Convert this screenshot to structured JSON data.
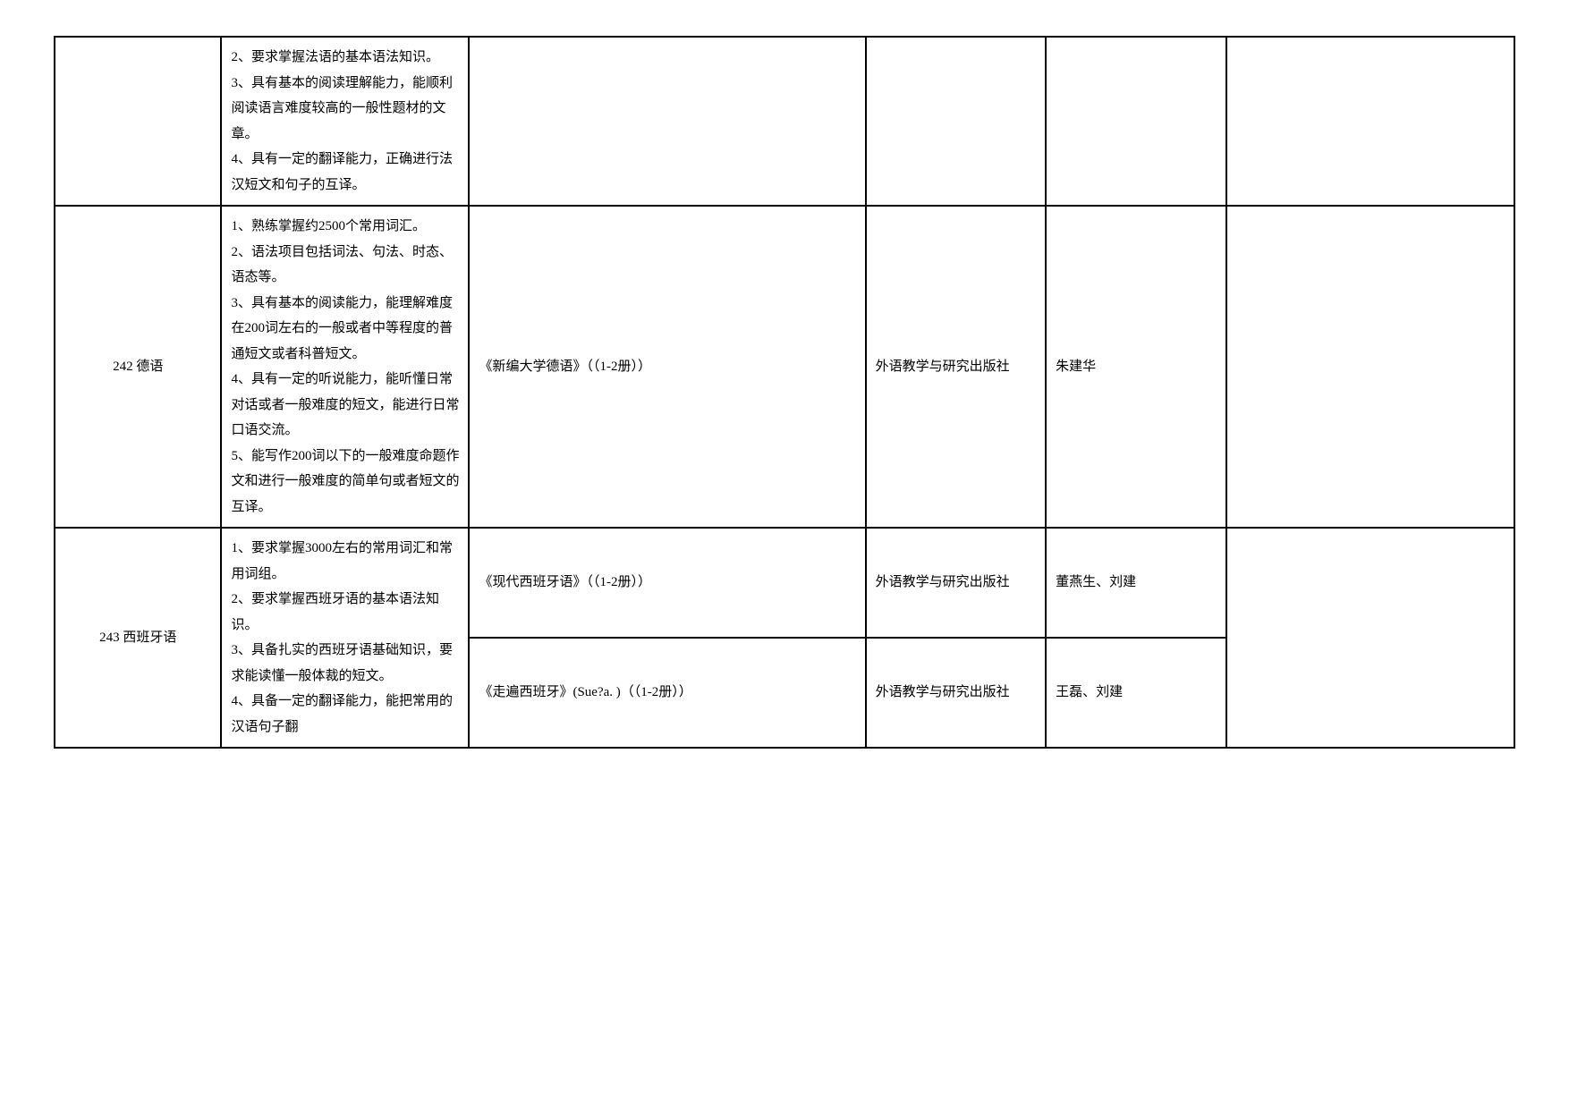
{
  "table": {
    "columns": [
      {
        "class": "col1",
        "width": "11%",
        "align": "center"
      },
      {
        "class": "col2",
        "width": "17%",
        "align": "left"
      },
      {
        "class": "col3",
        "width": "28%",
        "align": "left"
      },
      {
        "class": "col4",
        "width": "12%",
        "align": "left"
      },
      {
        "class": "col5",
        "width": "12%",
        "align": "left"
      },
      {
        "class": "col6",
        "width": "20%",
        "align": "left"
      }
    ],
    "border_color": "#000000",
    "border_width": 2,
    "background_color": "#ffffff",
    "font_family": "SimSun",
    "font_size": 15,
    "line_height": 1.9
  },
  "row1": {
    "code": "",
    "desc": "2、要求掌握法语的基本语法知识。\n3、具有基本的阅读理解能力，能顺利阅读语言难度较高的一般性题材的文章。\n4、具有一定的翻译能力，正确进行法汉短文和句子的互译。",
    "book": "",
    "publisher": "",
    "author": "",
    "note": ""
  },
  "row2": {
    "code": "242 德语",
    "desc": "1、熟练掌握约2500个常用词汇。\n2、语法项目包括词法、句法、时态、语态等。\n3、具有基本的阅读能力，能理解难度在200词左右的一般或者中等程度的普通短文或者科普短文。\n4、具有一定的听说能力，能听懂日常对话或者一般难度的短文，能进行日常口语交流。\n5、能写作200词以下的一般难度命题作文和进行一般难度的简单句或者短文的互译。",
    "book": "《新编大学德语》（（1-2册））",
    "publisher": "外语教学与研究出版社",
    "author": "朱建华",
    "note": ""
  },
  "row3": {
    "code": "243 西班牙语",
    "desc": "1、要求掌握3000左右的常用词汇和常用词组。\n2、要求掌握西班牙语的基本语法知识。\n3、具备扎实的西班牙语基础知识，要求能读懂一般体裁的短文。\n4、具备一定的翻译能力，能把常用的汉语句子翻",
    "book_a": "《现代西班牙语》（（1-2册））",
    "publisher_a": "外语教学与研究出版社",
    "author_a": "董燕生、刘建",
    "book_b": "《走遍西班牙》(Sue?a. )（（1-2册））",
    "publisher_b": "外语教学与研究出版社",
    "author_b": "王磊、刘建",
    "note": ""
  }
}
